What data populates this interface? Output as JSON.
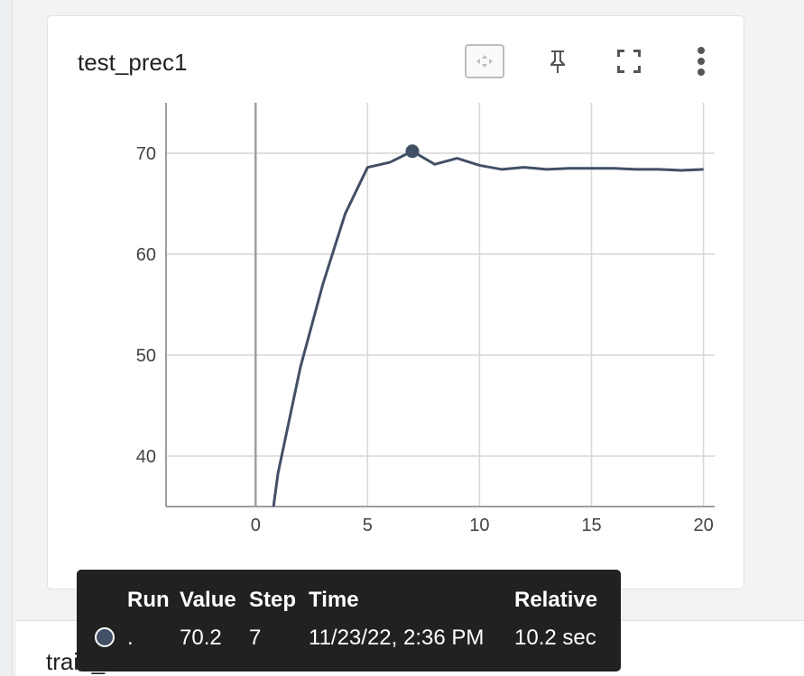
{
  "card": {
    "title": "test_prec1",
    "toolbar": {
      "fit_icon": "fit-domain-icon",
      "pin_icon": "pin-icon",
      "fullscreen_icon": "fullscreen-icon",
      "more_icon": "more-vert-icon"
    }
  },
  "second_card": {
    "title": "train_acc"
  },
  "colors": {
    "series": "#425066",
    "grid": "#d6d6d6",
    "axis": "#9e9e9e",
    "tooltip_bg": "#212121"
  },
  "chart_data": {
    "type": "line",
    "title": "",
    "xlabel": "",
    "ylabel": "",
    "xlim": [
      -4,
      20.5
    ],
    "ylim": [
      35,
      75
    ],
    "x_ticks": [
      "0",
      "5",
      "10",
      "15",
      "20"
    ],
    "y_ticks": [
      "40",
      "50",
      "60",
      "70"
    ],
    "grid": true,
    "series": [
      {
        "x": [
          0.8,
          1,
          2,
          3,
          4,
          5,
          6,
          7,
          8,
          9,
          10,
          11,
          12,
          13,
          14,
          15,
          16,
          17,
          18,
          19,
          20
        ],
        "values": [
          35,
          38.3,
          48.8,
          57,
          64,
          68.6,
          69.1,
          70.2,
          68.9,
          69.5,
          68.8,
          68.4,
          68.6,
          68.4,
          68.5,
          68.5,
          68.5,
          68.4,
          68.4,
          68.3,
          68.4
        ]
      }
    ],
    "highlight": {
      "x": 7,
      "y": 70.2
    }
  },
  "tooltip": {
    "headers": {
      "run": "Run",
      "value": "Value",
      "step": "Step",
      "time": "Time",
      "relative": "Relative"
    },
    "row": {
      "run": ".",
      "value": "70.2",
      "step": "7",
      "time": "11/23/22, 2:36 PM",
      "relative": "10.2 sec"
    }
  }
}
